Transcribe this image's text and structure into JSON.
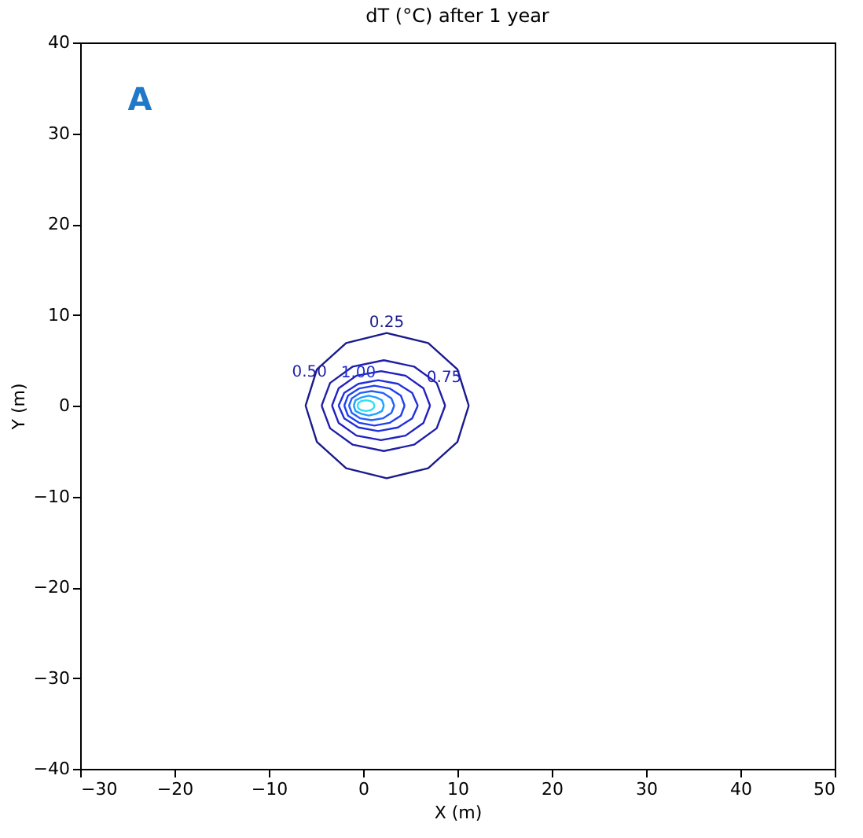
{
  "chart_data": {
    "type": "line",
    "title": "dT (°C) after 1 year",
    "xlabel": "X (m)",
    "ylabel": "Y (m)",
    "xlim": [
      -30,
      50
    ],
    "ylim": [
      -40,
      40
    ],
    "xticks": [
      -30,
      -20,
      -10,
      0,
      10,
      20,
      30,
      40,
      50
    ],
    "yticks": [
      -40,
      -30,
      -20,
      -10,
      0,
      10,
      20,
      30,
      40
    ],
    "grid": false,
    "marker": "none",
    "line_style": "solid",
    "annotations": [
      "A"
    ],
    "series": [
      {
        "name": "0.25",
        "color": "#1a1a8c",
        "x": [
          -6.1,
          -4.9,
          -1.8,
          2.5,
          6.9,
          10.0,
          11.2
        ],
        "values": [
          0,
          4,
          6.9,
          8,
          6.9,
          4,
          0
        ]
      },
      {
        "color": "#1a1a8c",
        "x": [
          -6.1,
          -4.9,
          -1.8,
          2.5,
          6.9,
          10.0,
          11.2
        ],
        "values": [
          0,
          -4,
          -6.9,
          -8,
          -6.9,
          -4,
          0
        ]
      },
      {
        "name": "0.50",
        "color": "#1f1fa8",
        "x": [
          -4.4,
          -3.5,
          -1.1,
          2.2,
          5.4,
          7.8,
          8.7
        ],
        "values": [
          0,
          2.5,
          4.3,
          5,
          4.3,
          2.5,
          0
        ]
      },
      {
        "color": "#1f1fa8",
        "x": [
          -4.4,
          -3.5,
          -1.1,
          2.2,
          5.4,
          7.8,
          8.7
        ],
        "values": [
          0,
          -2.5,
          -4.3,
          -5,
          -4.3,
          -2.5,
          0
        ]
      },
      {
        "name": "0.75",
        "color": "#2020c0",
        "x": [
          -3.3,
          -2.6,
          -0.7,
          1.9,
          4.5,
          6.4,
          7.1
        ],
        "values": [
          0,
          1.9,
          3.3,
          3.8,
          3.3,
          1.9,
          0
        ]
      },
      {
        "color": "#2020c0",
        "x": [
          -3.3,
          -2.6,
          -0.7,
          1.9,
          4.5,
          6.4,
          7.1
        ],
        "values": [
          0,
          -1.9,
          -3.3,
          -3.8,
          -3.3,
          -1.9,
          0
        ]
      },
      {
        "name": "1.00",
        "color": "#2030d8",
        "x": [
          -2.6,
          -2.0,
          -0.5,
          1.6,
          3.7,
          5.2,
          5.8
        ],
        "values": [
          0,
          1.4,
          2.4,
          2.8,
          2.4,
          1.4,
          0
        ]
      },
      {
        "color": "#2030d8",
        "x": [
          -2.6,
          -2.0,
          -0.5,
          1.6,
          3.7,
          5.2,
          5.8
        ],
        "values": [
          0,
          -1.4,
          -2.4,
          -2.8,
          -2.4,
          -1.4,
          0
        ]
      },
      {
        "color": "#2040f0",
        "x": [
          -2,
          -1.6,
          -0.4,
          1.2,
          2.8,
          4.0,
          4.4
        ],
        "values": [
          0,
          1.1,
          1.9,
          2.2,
          1.9,
          1.1,
          0
        ]
      },
      {
        "color": "#2040f0",
        "x": [
          -2,
          -1.6,
          -0.4,
          1.2,
          2.8,
          4.0,
          4.4
        ],
        "values": [
          0,
          -1.1,
          -1.9,
          -2.2,
          -1.9,
          -1.1,
          0
        ]
      },
      {
        "color": "#2060ff",
        "x": [
          -1.5,
          -1.2,
          -0.3,
          0.9,
          2.1,
          3.0,
          3.3
        ],
        "values": [
          0,
          0.8,
          1.4,
          1.6,
          1.4,
          0.8,
          0
        ]
      },
      {
        "color": "#2060ff",
        "x": [
          -1.5,
          -1.2,
          -0.3,
          0.9,
          2.1,
          3.0,
          3.3
        ],
        "values": [
          0,
          -0.8,
          -1.4,
          -1.6,
          -1.4,
          -0.8,
          0
        ]
      },
      {
        "color": "#20a0ff",
        "x": [
          -1.0,
          -0.8,
          -0.2,
          0.6,
          1.4,
          2.0,
          2.2
        ],
        "values": [
          0,
          0.6,
          0.9,
          1.1,
          0.9,
          0.6,
          0
        ]
      },
      {
        "color": "#20a0ff",
        "x": [
          -1.0,
          -0.8,
          -0.2,
          0.6,
          1.4,
          2.0,
          2.2
        ],
        "values": [
          0,
          -0.6,
          -0.9,
          -1.1,
          -0.9,
          -0.6,
          0
        ]
      },
      {
        "color": "#30e0f0",
        "x": [
          -0.6,
          -0.5,
          -0.2,
          0.3,
          0.8,
          1.1,
          1.2
        ],
        "values": [
          0,
          0.3,
          0.5,
          0.6,
          0.5,
          0.3,
          0
        ]
      },
      {
        "color": "#30e0f0",
        "x": [
          -0.6,
          -0.5,
          -0.2,
          0.3,
          0.8,
          1.1,
          1.2
        ],
        "values": [
          0,
          -0.3,
          -0.5,
          -0.6,
          -0.5,
          -0.3,
          0
        ]
      }
    ]
  }
}
